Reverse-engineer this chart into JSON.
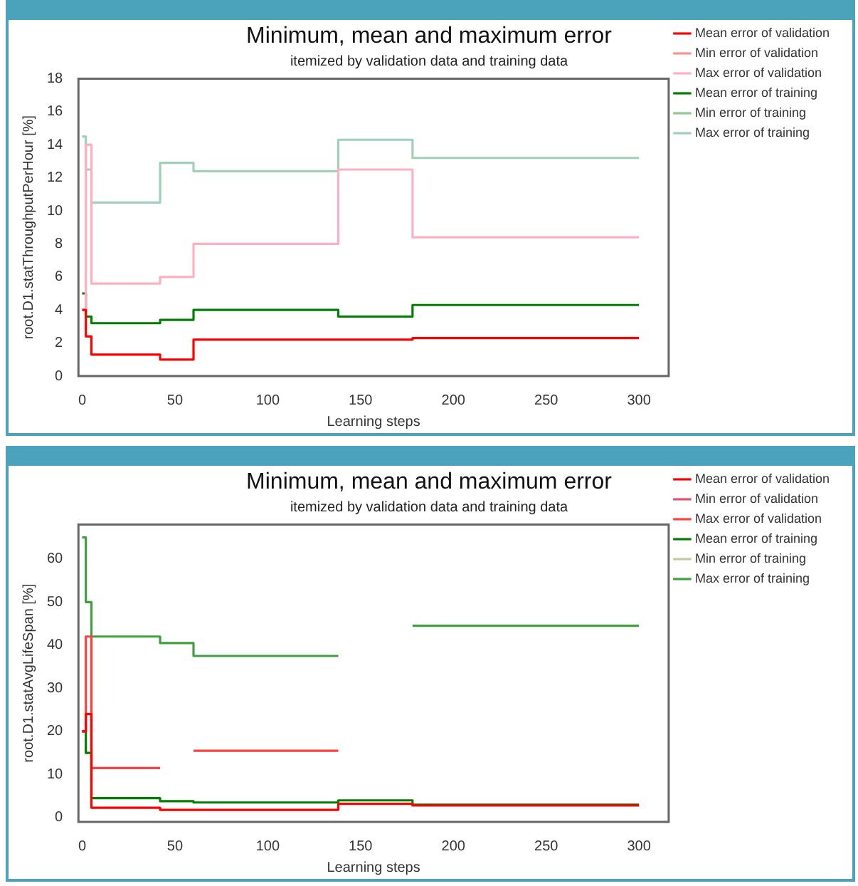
{
  "chart_data": [
    {
      "type": "step",
      "title": "Minimum, mean and maximum error",
      "subtitle": "itemized by validation data and training data",
      "xlabel": "Learning steps",
      "ylabel": "root.D1.statThroughputPerHour [%]",
      "x": [
        0,
        2,
        5,
        42,
        60,
        138,
        178,
        300
      ],
      "xlim": [
        -2,
        316
      ],
      "xticks": [
        0,
        50,
        100,
        150,
        200,
        250,
        300
      ],
      "ylim": [
        0,
        18
      ],
      "yticks": [
        0,
        2,
        4,
        6,
        8,
        10,
        12,
        14,
        16,
        18
      ],
      "grid": false,
      "legend": "right",
      "marker": "none",
      "line_style": "solid",
      "series": [
        {
          "name": "Mean error of validation",
          "color": "#ff0000",
          "values": [
            4.0,
            2.4,
            1.3,
            1.0,
            2.2,
            2.2,
            2.3,
            2.3
          ]
        },
        {
          "name": "Min error of validation",
          "color": "#ff9090",
          "values": [
            null,
            null,
            null,
            null,
            null,
            null,
            null,
            null
          ]
        },
        {
          "name": "Max error of validation",
          "color": "#ffb0c0",
          "values": [
            4.0,
            14.0,
            5.6,
            6.0,
            8.0,
            12.5,
            8.4,
            8.4
          ]
        },
        {
          "name": "Mean error of training",
          "color": "#008000",
          "values": [
            5.0,
            3.6,
            3.2,
            3.4,
            4.0,
            3.6,
            4.3,
            4.3
          ]
        },
        {
          "name": "Min error of training",
          "color": "#90c890",
          "values": [
            null,
            null,
            null,
            null,
            null,
            null,
            null,
            null
          ]
        },
        {
          "name": "Max error of training",
          "color": "#a0d0b8",
          "values": [
            14.5,
            12.5,
            10.5,
            12.9,
            12.4,
            14.3,
            13.2,
            13.2
          ]
        }
      ]
    },
    {
      "type": "step",
      "title": "Minimum, mean and maximum error",
      "subtitle": "itemized by validation data and training data",
      "xlabel": "Learning steps",
      "ylabel": "root.D1.statAvgLifeSpan [%]",
      "x": [
        0,
        2,
        5,
        42,
        60,
        138,
        178,
        300
      ],
      "xlim": [
        -2,
        316
      ],
      "xticks": [
        0,
        50,
        100,
        150,
        200,
        250,
        300
      ],
      "ylim": [
        -1,
        68
      ],
      "yticks": [
        0,
        10,
        20,
        30,
        40,
        50,
        60
      ],
      "grid": false,
      "legend": "right",
      "marker": "none",
      "line_style": "solid",
      "series": [
        {
          "name": "Mean error of validation",
          "color": "#ff0000",
          "values": [
            20,
            24,
            2.3,
            1.8,
            1.8,
            3.2,
            2.8,
            2.8
          ]
        },
        {
          "name": "Min error of validation",
          "color": "#e8506a",
          "values": [
            null,
            null,
            null,
            null,
            null,
            null,
            null,
            null
          ]
        },
        {
          "name": "Max error of validation",
          "color": "#ff4040",
          "x": [
            0,
            2,
            5,
            42,
            43,
            60,
            138
          ],
          "values": [
            20,
            42,
            11.5,
            11.5,
            null,
            15.5,
            15.5
          ]
        },
        {
          "name": "Mean error of training",
          "color": "#008000",
          "values": [
            20,
            15,
            4.5,
            3.8,
            3.5,
            4.0,
            3.0,
            3.0
          ]
        },
        {
          "name": "Min error of training",
          "color": "#c8c8a0",
          "values": [
            null,
            null,
            null,
            null,
            null,
            null,
            null,
            null
          ]
        },
        {
          "name": "Max error of training",
          "color": "#40a040",
          "x": [
            0,
            2,
            5,
            42,
            60,
            138,
            139,
            178,
            300
          ],
          "values": [
            65,
            50,
            42,
            40.5,
            37.5,
            37.5,
            null,
            44.5,
            44.5
          ]
        }
      ]
    }
  ]
}
